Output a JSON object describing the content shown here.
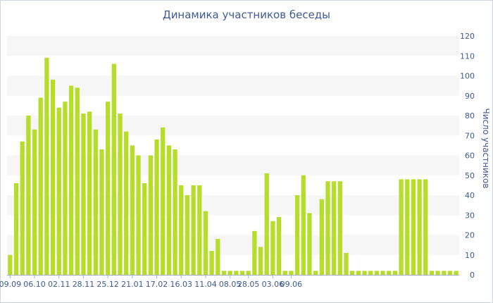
{
  "chart_data": {
    "type": "bar",
    "title": "Динамика участников беседы",
    "ylabel": "Число участников",
    "xlabel": "",
    "ylim": [
      0,
      120
    ],
    "y_ticks": [
      0,
      10,
      20,
      30,
      40,
      50,
      60,
      70,
      80,
      90,
      100,
      110,
      120
    ],
    "y_axis_side": "right",
    "grid": "horizontal alternating bands",
    "bar_color": "#b5dd2a",
    "band_color": "#f6f6f6",
    "text_color": "#3e5a96",
    "x_tick_labels": [
      {
        "label": "09.09",
        "index": 0
      },
      {
        "label": "06.10",
        "index": 4
      },
      {
        "label": "02.11",
        "index": 8
      },
      {
        "label": "28.11",
        "index": 12
      },
      {
        "label": "25.12",
        "index": 16
      },
      {
        "label": "21.01",
        "index": 20
      },
      {
        "label": "17.02",
        "index": 24
      },
      {
        "label": "16.03",
        "index": 28
      },
      {
        "label": "11.04",
        "index": 32
      },
      {
        "label": "08.05",
        "index": 36
      },
      {
        "label": "28.05",
        "index": 39
      },
      {
        "label": "03.06",
        "index": 43
      },
      {
        "label": "09.06",
        "index": 46
      }
    ],
    "values": [
      10,
      46,
      67,
      80,
      73,
      89,
      109,
      98,
      84,
      87,
      95,
      94,
      81,
      82,
      73,
      63,
      87,
      106,
      81,
      72,
      65,
      60,
      46,
      60,
      68,
      74,
      65,
      63,
      45,
      40,
      45,
      45,
      32,
      12,
      18,
      2,
      2,
      2,
      2,
      2,
      22,
      14,
      51,
      27,
      29,
      2,
      2,
      40,
      50,
      31,
      2,
      38,
      47,
      47,
      47,
      11,
      2,
      2,
      2,
      2,
      2,
      2,
      2,
      2,
      48,
      48,
      48,
      48,
      48,
      2,
      2,
      2,
      2,
      2
    ]
  }
}
